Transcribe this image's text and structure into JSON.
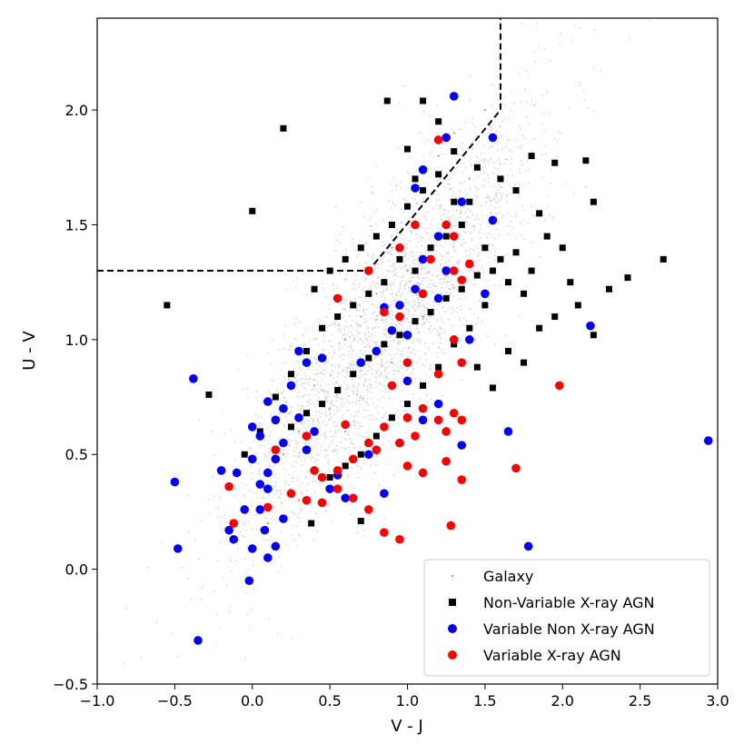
{
  "chart_data": {
    "type": "scatter",
    "xlabel": "V - J",
    "ylabel": "U - V",
    "xlim": [
      -1.0,
      3.0
    ],
    "ylim": [
      -0.5,
      2.4
    ],
    "x_ticks": [
      -1.0,
      -0.5,
      0.0,
      0.5,
      1.0,
      1.5,
      2.0,
      2.5,
      3.0
    ],
    "x_tick_labels": [
      "−1.0",
      "−0.5",
      "0.0",
      "0.5",
      "1.0",
      "1.5",
      "2.0",
      "2.5",
      "3.0"
    ],
    "y_ticks": [
      -0.5,
      0.0,
      0.5,
      1.0,
      1.5,
      2.0
    ],
    "y_tick_labels": [
      "−0.5",
      "0.0",
      "0.5",
      "1.0",
      "1.5",
      "2.0"
    ],
    "legend_position": "bottom-right",
    "boundary_line": {
      "style": "dashed",
      "x": [
        -1.0,
        0.75,
        1.6,
        1.6
      ],
      "y": [
        1.3,
        1.3,
        2.0,
        2.4
      ]
    },
    "series": [
      {
        "name": "Galaxy",
        "marker": "dot",
        "color": "#9e9e9e",
        "points": [
          [
            0.9,
            1.4
          ],
          [
            1.1,
            1.6
          ],
          [
            1.2,
            1.8
          ],
          [
            0.6,
            1.0
          ],
          [
            0.4,
            0.8
          ],
          [
            0.3,
            0.6
          ],
          [
            0.8,
            1.2
          ],
          [
            1.0,
            1.3
          ],
          [
            1.3,
            1.9
          ],
          [
            0.5,
            0.7
          ],
          [
            0.2,
            0.5
          ],
          [
            1.4,
            1.7
          ],
          [
            0.7,
            1.1
          ],
          [
            0.9,
            0.9
          ],
          [
            1.1,
            1.1
          ],
          [
            0.6,
            0.6
          ],
          [
            0.3,
            0.3
          ],
          [
            0.1,
            0.2
          ],
          [
            1.5,
            2.0
          ],
          [
            0.8,
            0.5
          ]
        ]
      },
      {
        "name": "Non-Variable X-ray AGN",
        "marker": "square",
        "color": "#000000",
        "points": [
          [
            0.2,
            1.92
          ],
          [
            -0.55,
            1.15
          ],
          [
            0.0,
            1.56
          ],
          [
            -0.28,
            0.76
          ],
          [
            -0.05,
            0.5
          ],
          [
            0.87,
            2.04
          ],
          [
            1.1,
            2.04
          ],
          [
            1.95,
            1.77
          ],
          [
            1.8,
            1.8
          ],
          [
            2.15,
            1.78
          ],
          [
            2.2,
            1.6
          ],
          [
            2.42,
            1.27
          ],
          [
            2.65,
            1.35
          ],
          [
            2.05,
            1.25
          ],
          [
            2.2,
            1.02
          ],
          [
            1.75,
            0.9
          ],
          [
            1.55,
            0.79
          ],
          [
            0.38,
            0.2
          ],
          [
            0.7,
            0.21
          ],
          [
            1.0,
            1.83
          ],
          [
            1.05,
            1.7
          ],
          [
            1.1,
            1.65
          ],
          [
            1.2,
            1.72
          ],
          [
            1.3,
            1.6
          ],
          [
            1.4,
            1.6
          ],
          [
            1.35,
            1.5
          ],
          [
            1.25,
            1.45
          ],
          [
            1.15,
            1.4
          ],
          [
            1.05,
            1.3
          ],
          [
            0.95,
            1.35
          ],
          [
            0.85,
            1.25
          ],
          [
            0.75,
            1.2
          ],
          [
            0.65,
            1.15
          ],
          [
            0.55,
            1.1
          ],
          [
            0.45,
            1.05
          ],
          [
            0.35,
            0.95
          ],
          [
            0.25,
            0.85
          ],
          [
            0.15,
            0.75
          ],
          [
            0.05,
            0.6
          ],
          [
            1.5,
            1.4
          ],
          [
            1.6,
            1.35
          ],
          [
            1.7,
            1.38
          ],
          [
            1.8,
            1.3
          ],
          [
            1.65,
            1.25
          ],
          [
            1.55,
            1.3
          ],
          [
            1.45,
            1.28
          ],
          [
            1.35,
            1.22
          ],
          [
            1.25,
            1.18
          ],
          [
            1.15,
            1.12
          ],
          [
            1.05,
            1.08
          ],
          [
            0.95,
            1.02
          ],
          [
            0.85,
            0.98
          ],
          [
            0.75,
            0.92
          ],
          [
            0.65,
            0.85
          ],
          [
            0.55,
            0.78
          ],
          [
            0.45,
            0.72
          ],
          [
            0.35,
            0.68
          ],
          [
            0.25,
            0.62
          ],
          [
            1.9,
            1.45
          ],
          [
            2.0,
            1.4
          ],
          [
            1.85,
            1.55
          ],
          [
            1.7,
            1.65
          ],
          [
            1.6,
            1.7
          ],
          [
            1.45,
            1.75
          ],
          [
            1.3,
            1.82
          ],
          [
            1.2,
            1.95
          ],
          [
            1.0,
            1.58
          ],
          [
            0.9,
            1.5
          ],
          [
            0.8,
            1.45
          ],
          [
            0.7,
            1.4
          ],
          [
            0.6,
            1.35
          ],
          [
            0.5,
            1.3
          ],
          [
            0.4,
            1.22
          ],
          [
            1.4,
            1.05
          ],
          [
            1.3,
            0.98
          ],
          [
            1.2,
            0.88
          ],
          [
            1.1,
            0.8
          ],
          [
            1.0,
            0.72
          ],
          [
            0.9,
            0.66
          ],
          [
            0.8,
            0.58
          ],
          [
            0.7,
            0.5
          ],
          [
            0.6,
            0.45
          ],
          [
            0.5,
            0.4
          ],
          [
            1.5,
            1.15
          ],
          [
            1.75,
            1.2
          ],
          [
            1.95,
            1.1
          ],
          [
            2.1,
            1.15
          ],
          [
            2.3,
            1.22
          ],
          [
            1.85,
            1.05
          ],
          [
            1.65,
            0.95
          ],
          [
            1.45,
            0.88
          ]
        ]
      },
      {
        "name": "Variable Non X-ray AGN",
        "marker": "circle",
        "color": "#0000ff",
        "points": [
          [
            1.3,
            2.06
          ],
          [
            1.55,
            1.88
          ],
          [
            1.25,
            1.88
          ],
          [
            1.1,
            1.74
          ],
          [
            1.05,
            1.66
          ],
          [
            1.35,
            1.6
          ],
          [
            1.55,
            1.52
          ],
          [
            1.2,
            1.45
          ],
          [
            1.1,
            1.35
          ],
          [
            1.25,
            1.3
          ],
          [
            1.05,
            1.22
          ],
          [
            0.95,
            1.15
          ],
          [
            1.2,
            1.18
          ],
          [
            0.85,
            1.14
          ],
          [
            0.9,
            1.04
          ],
          [
            1.0,
            1.02
          ],
          [
            0.8,
            0.95
          ],
          [
            0.7,
            0.9
          ],
          [
            0.45,
            0.92
          ],
          [
            0.35,
            0.9
          ],
          [
            0.3,
            0.95
          ],
          [
            0.25,
            0.8
          ],
          [
            0.2,
            0.7
          ],
          [
            0.15,
            0.65
          ],
          [
            0.1,
            0.73
          ],
          [
            0.0,
            0.62
          ],
          [
            0.05,
            0.58
          ],
          [
            0.3,
            0.66
          ],
          [
            0.4,
            0.6
          ],
          [
            0.35,
            0.52
          ],
          [
            0.2,
            0.55
          ],
          [
            0.15,
            0.48
          ],
          [
            0.1,
            0.42
          ],
          [
            0.0,
            0.48
          ],
          [
            -0.1,
            0.42
          ],
          [
            -0.2,
            0.43
          ],
          [
            -0.5,
            0.38
          ],
          [
            -0.38,
            0.83
          ],
          [
            0.05,
            0.37
          ],
          [
            -0.05,
            0.26
          ],
          [
            0.05,
            0.26
          ],
          [
            0.1,
            0.35
          ],
          [
            0.2,
            0.22
          ],
          [
            0.15,
            0.1
          ],
          [
            0.1,
            0.05
          ],
          [
            -0.12,
            0.13
          ],
          [
            -0.15,
            0.17
          ],
          [
            -0.48,
            0.09
          ],
          [
            0.0,
            0.09
          ],
          [
            0.08,
            0.17
          ],
          [
            -0.02,
            -0.05
          ],
          [
            -0.35,
            -0.31
          ],
          [
            0.5,
            0.35
          ],
          [
            0.6,
            0.31
          ],
          [
            0.55,
            0.41
          ],
          [
            0.75,
            0.5
          ],
          [
            0.85,
            0.33
          ],
          [
            0.95,
            0.55
          ],
          [
            1.1,
            0.65
          ],
          [
            1.2,
            0.72
          ],
          [
            1.5,
            1.2
          ],
          [
            1.35,
            0.54
          ],
          [
            1.65,
            0.6
          ],
          [
            1.78,
            0.1
          ],
          [
            2.18,
            1.06
          ],
          [
            2.94,
            0.56
          ],
          [
            1.4,
            1.0
          ],
          [
            1.0,
            0.82
          ]
        ]
      },
      {
        "name": "Variable X-ray AGN",
        "marker": "circle",
        "color": "#ff0000",
        "points": [
          [
            1.2,
            1.87
          ],
          [
            1.05,
            1.5
          ],
          [
            1.25,
            1.5
          ],
          [
            1.3,
            1.45
          ],
          [
            0.95,
            1.4
          ],
          [
            1.15,
            1.35
          ],
          [
            1.3,
            1.3
          ],
          [
            1.4,
            1.33
          ],
          [
            1.35,
            1.26
          ],
          [
            0.75,
            1.3
          ],
          [
            1.1,
            1.2
          ],
          [
            0.95,
            1.1
          ],
          [
            0.55,
            1.18
          ],
          [
            0.85,
            1.12
          ],
          [
            1.3,
            1.0
          ],
          [
            1.0,
            0.9
          ],
          [
            1.2,
            0.85
          ],
          [
            1.35,
            0.9
          ],
          [
            0.9,
            0.8
          ],
          [
            1.1,
            0.7
          ],
          [
            1.2,
            0.65
          ],
          [
            1.3,
            0.68
          ],
          [
            1.0,
            0.66
          ],
          [
            0.85,
            0.62
          ],
          [
            0.95,
            0.55
          ],
          [
            1.05,
            0.58
          ],
          [
            1.25,
            0.6
          ],
          [
            1.35,
            0.65
          ],
          [
            0.75,
            0.55
          ],
          [
            0.65,
            0.48
          ],
          [
            0.55,
            0.43
          ],
          [
            0.45,
            0.4
          ],
          [
            0.35,
            0.58
          ],
          [
            0.4,
            0.43
          ],
          [
            0.15,
            0.52
          ],
          [
            0.1,
            0.27
          ],
          [
            0.25,
            0.33
          ],
          [
            0.35,
            0.3
          ],
          [
            0.45,
            0.29
          ],
          [
            0.55,
            0.35
          ],
          [
            0.65,
            0.31
          ],
          [
            0.75,
            0.26
          ],
          [
            0.85,
            0.16
          ],
          [
            0.95,
            0.13
          ],
          [
            1.0,
            0.45
          ],
          [
            1.1,
            0.42
          ],
          [
            1.25,
            0.47
          ],
          [
            1.35,
            0.39
          ],
          [
            1.28,
            0.19
          ],
          [
            1.7,
            0.44
          ],
          [
            1.98,
            0.8
          ],
          [
            -0.15,
            0.36
          ],
          [
            -0.12,
            0.2
          ],
          [
            0.6,
            0.63
          ],
          [
            0.8,
            0.52
          ]
        ]
      }
    ]
  }
}
